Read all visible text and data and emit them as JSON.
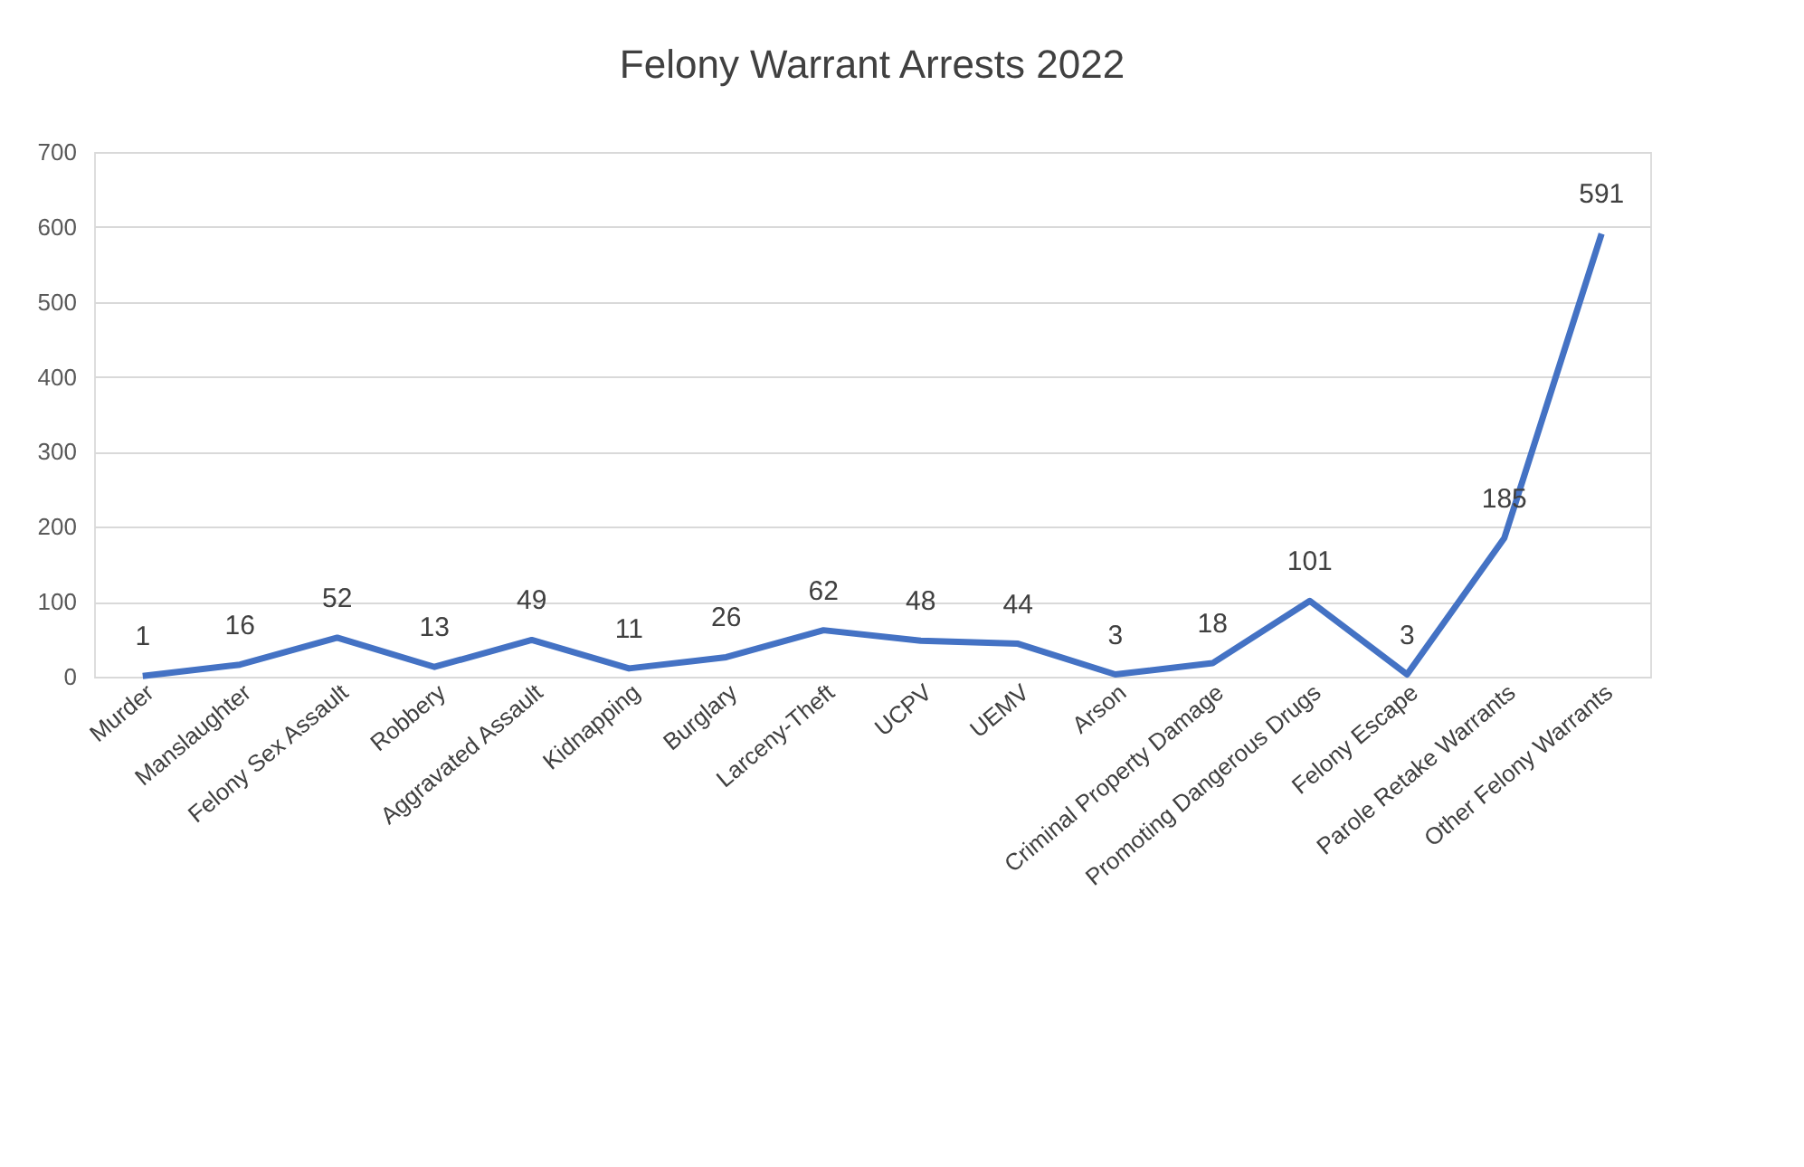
{
  "chart_data": {
    "type": "line",
    "title": "Felony Warrant Arrests 2022",
    "categories": [
      "Murder",
      "Manslaughter",
      "Felony Sex Assault",
      "Robbery",
      "Aggravated Assault",
      "Kidnapping",
      "Burglary",
      "Larceny-Theft",
      "UCPV",
      "UEMV",
      "Arson",
      "Criminal Property Damage",
      "Promoting Dangerous Drugs",
      "Felony Escape",
      "Parole Retake Warrants",
      "Other Felony Warrants"
    ],
    "series": [
      {
        "color": "#4472c4",
        "values": [
          1,
          16,
          52,
          13,
          49,
          11,
          26,
          62,
          48,
          44,
          3,
          18,
          101,
          3,
          185,
          591
        ]
      }
    ],
    "ylim": [
      0,
      700
    ],
    "yticks": [
      0,
      100,
      200,
      300,
      400,
      500,
      600,
      700
    ],
    "grid": "y",
    "data_labels": true,
    "marker": "none",
    "line_style": "solid"
  }
}
